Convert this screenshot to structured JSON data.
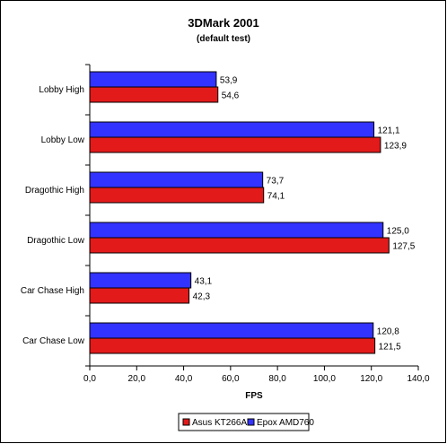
{
  "chart_data": {
    "type": "bar",
    "orientation": "horizontal",
    "title": "3DMark 2001",
    "subtitle": "(default test)",
    "xlabel": "FPS",
    "ylabel": "",
    "xlim": [
      0,
      140
    ],
    "x_ticks": [
      "0,0",
      "20,0",
      "40,0",
      "60,0",
      "80,0",
      "100,0",
      "120,0",
      "140,0"
    ],
    "categories": [
      "Lobby High",
      "Lobby Low",
      "Dragothic High",
      "Dragothic Low",
      "Car Chase High",
      "Car Chase Low"
    ],
    "series": [
      {
        "name": "Epox AMD760",
        "color": "#3333ff",
        "values": [
          53.9,
          121.1,
          73.7,
          125.0,
          43.1,
          120.8
        ],
        "labels": [
          "53,9",
          "121,1",
          "73,7",
          "125,0",
          "43,1",
          "120,8"
        ]
      },
      {
        "name": "Asus KT266A",
        "color": "#e21a1a",
        "values": [
          54.6,
          123.9,
          74.1,
          127.5,
          42.3,
          121.5
        ],
        "labels": [
          "54,6",
          "123,9",
          "74,1",
          "127,5",
          "42,3",
          "121,5"
        ]
      }
    ],
    "legend": {
      "position": "bottom",
      "entries": [
        "Asus KT266A",
        "Epox AMD760"
      ]
    },
    "grid": false,
    "plot_background": "#ffffff",
    "border_color": "#000000"
  }
}
